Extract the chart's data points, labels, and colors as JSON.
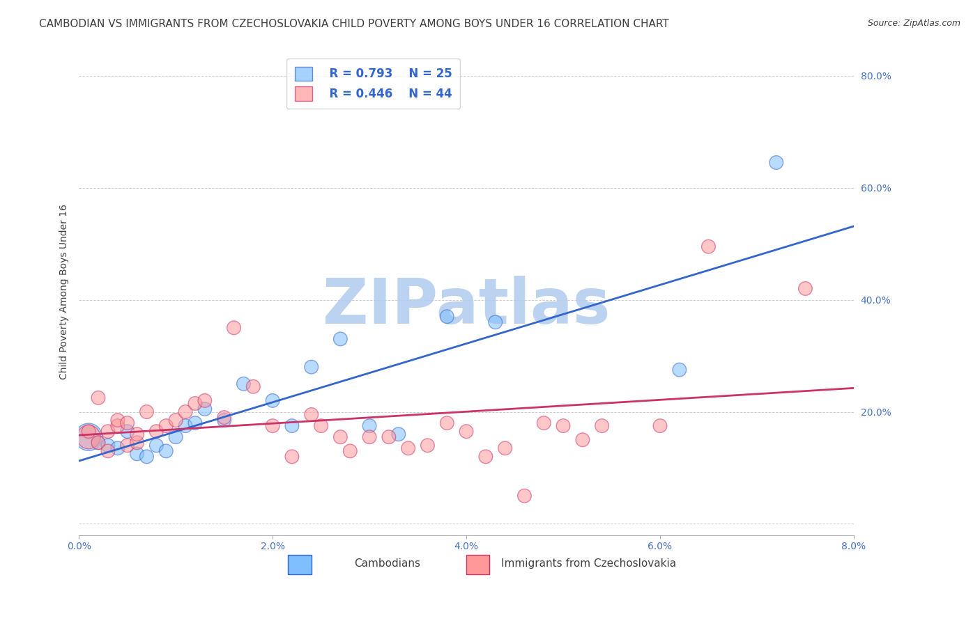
{
  "title": "CAMBODIAN VS IMMIGRANTS FROM CZECHOSLOVAKIA CHILD POVERTY AMONG BOYS UNDER 16 CORRELATION CHART",
  "source": "Source: ZipAtlas.com",
  "xlabel": "",
  "ylabel": "Child Poverty Among Boys Under 16",
  "xlim": [
    0.0,
    0.08
  ],
  "ylim": [
    -0.02,
    0.85
  ],
  "yticks": [
    0.0,
    0.2,
    0.4,
    0.6,
    0.8
  ],
  "xticks": [
    0.0,
    0.02,
    0.04,
    0.06,
    0.08
  ],
  "xtick_labels": [
    "0.0%",
    "2.0%",
    "4.0%",
    "6.0%",
    "8.0%"
  ],
  "ytick_labels": [
    "",
    "20.0%",
    "40.0%",
    "60.0%",
    "80.0%"
  ],
  "legend1_r": "R = 0.793",
  "legend1_n": "N = 25",
  "legend2_r": "R = 0.446",
  "legend2_n": "N = 44",
  "blue_color": "#7fbfff",
  "pink_color": "#ff9999",
  "blue_line_color": "#3366cc",
  "pink_line_color": "#cc3366",
  "watermark_color": "#b0ccee",
  "blue_scatter_x": [
    0.001,
    0.002,
    0.003,
    0.004,
    0.005,
    0.006,
    0.007,
    0.008,
    0.009,
    0.01,
    0.011,
    0.012,
    0.013,
    0.015,
    0.017,
    0.02,
    0.022,
    0.024,
    0.027,
    0.03,
    0.033,
    0.038,
    0.043,
    0.062,
    0.072
  ],
  "blue_scatter_y": [
    0.155,
    0.145,
    0.14,
    0.135,
    0.165,
    0.125,
    0.12,
    0.14,
    0.13,
    0.155,
    0.175,
    0.18,
    0.205,
    0.185,
    0.25,
    0.22,
    0.175,
    0.28,
    0.33,
    0.175,
    0.16,
    0.37,
    0.36,
    0.275,
    0.645
  ],
  "blue_scatter_size": [
    800,
    200,
    200,
    200,
    200,
    200,
    200,
    200,
    200,
    200,
    200,
    200,
    200,
    200,
    200,
    200,
    200,
    200,
    200,
    200,
    200,
    200,
    200,
    200,
    200
  ],
  "pink_scatter_x": [
    0.001,
    0.001,
    0.002,
    0.002,
    0.003,
    0.003,
    0.004,
    0.004,
    0.005,
    0.005,
    0.006,
    0.006,
    0.007,
    0.008,
    0.009,
    0.01,
    0.011,
    0.012,
    0.013,
    0.015,
    0.016,
    0.018,
    0.02,
    0.022,
    0.024,
    0.025,
    0.027,
    0.028,
    0.03,
    0.032,
    0.034,
    0.036,
    0.038,
    0.04,
    0.042,
    0.044,
    0.046,
    0.048,
    0.05,
    0.052,
    0.054,
    0.06,
    0.065,
    0.075
  ],
  "pink_scatter_y": [
    0.155,
    0.165,
    0.145,
    0.225,
    0.165,
    0.13,
    0.175,
    0.185,
    0.14,
    0.18,
    0.145,
    0.16,
    0.2,
    0.165,
    0.175,
    0.185,
    0.2,
    0.215,
    0.22,
    0.19,
    0.35,
    0.245,
    0.175,
    0.12,
    0.195,
    0.175,
    0.155,
    0.13,
    0.155,
    0.155,
    0.135,
    0.14,
    0.18,
    0.165,
    0.12,
    0.135,
    0.05,
    0.18,
    0.175,
    0.15,
    0.175,
    0.175,
    0.495,
    0.42
  ],
  "pink_scatter_size": [
    600,
    200,
    200,
    200,
    200,
    200,
    200,
    200,
    200,
    200,
    200,
    200,
    200,
    200,
    200,
    200,
    200,
    200,
    200,
    200,
    200,
    200,
    200,
    200,
    200,
    200,
    200,
    200,
    200,
    200,
    200,
    200,
    200,
    200,
    200,
    200,
    200,
    200,
    200,
    200,
    200,
    200,
    200,
    200
  ],
  "background_color": "#ffffff",
  "grid_color": "#cccccc",
  "tick_color": "#4472c4",
  "title_color": "#404040",
  "title_fontsize": 11,
  "axis_label_fontsize": 10,
  "tick_fontsize": 10,
  "source_fontsize": 9
}
